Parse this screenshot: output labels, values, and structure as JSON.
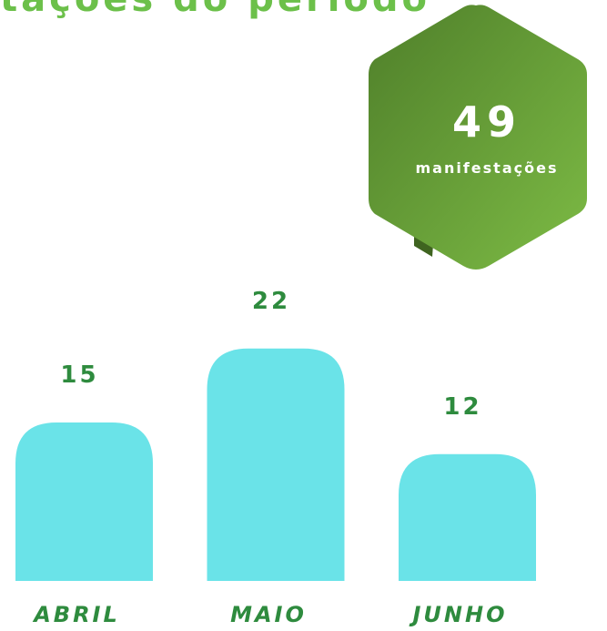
{
  "title": "tações do período",
  "badge": {
    "value": "49",
    "label": "manifestações"
  },
  "chart_data": {
    "type": "bar",
    "categories": [
      "ABRIL",
      "MAIO",
      "JUNHO"
    ],
    "values": [
      15,
      22,
      12
    ],
    "color": "#6ae3e8"
  }
}
